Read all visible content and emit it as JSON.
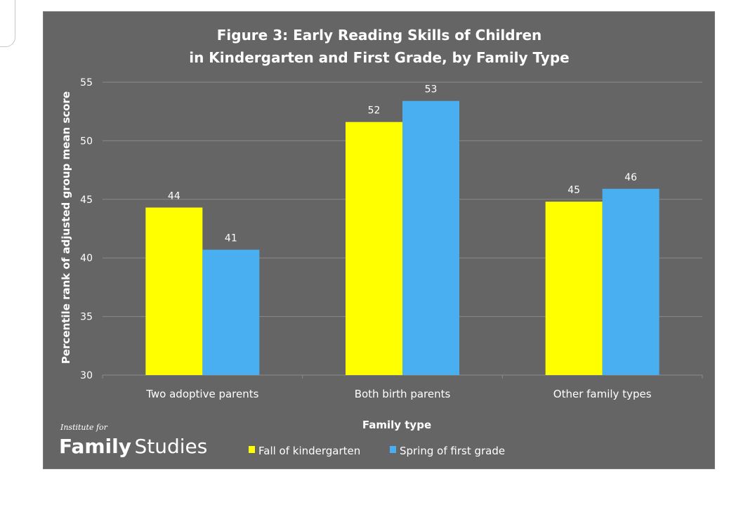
{
  "chart_data": {
    "type": "bar",
    "title_lines": [
      "Figure 3: Early Reading Skills of Children",
      "in Kindergarten and First Grade, by Family Type"
    ],
    "xlabel": "Family type",
    "ylabel": "Percentile rank of adjusted group mean score",
    "ylim": [
      30,
      55
    ],
    "yticks": [
      30,
      35,
      40,
      45,
      50,
      55
    ],
    "grid": true,
    "legend_position": "bottom",
    "categories": [
      "Two adoptive parents",
      "Both birth parents",
      "Other family types"
    ],
    "series": [
      {
        "name": "Fall of kindergarten",
        "color": "#ffff00",
        "values": [
          44.3,
          51.6,
          44.8
        ],
        "labels": [
          "44",
          "52",
          "45"
        ]
      },
      {
        "name": "Spring of first grade",
        "color": "#4aaff0",
        "values": [
          40.7,
          53.4,
          45.9
        ],
        "labels": [
          "41",
          "53",
          "46"
        ]
      }
    ]
  },
  "branding": {
    "small": "Institute for",
    "bold": "Family",
    "light": "Studies"
  }
}
